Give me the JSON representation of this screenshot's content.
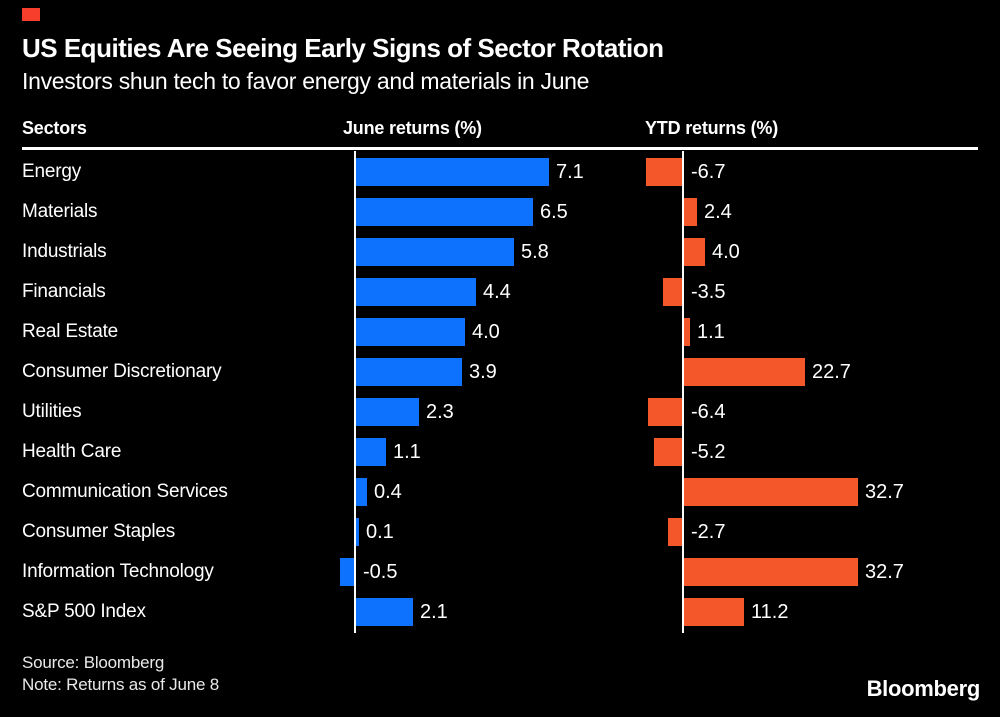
{
  "brand": {
    "red_square_color": "#f73e2c",
    "logo": "Bloomberg"
  },
  "header": {
    "title": "US Equities Are Seeing Early Signs of Sector Rotation",
    "subtitle": "Investors shun tech to favor energy and materials in June"
  },
  "table": {
    "sector_header": "Sectors"
  },
  "chart_data": {
    "type": "bar",
    "orientation": "horizontal",
    "title": "US Equities Are Seeing Early Signs of Sector Rotation",
    "subtitle": "Investors shun tech to favor energy and materials in June",
    "categories": [
      "Energy",
      "Materials",
      "Industrials",
      "Financials",
      "Real Estate",
      "Consumer Discretionary",
      "Utilities",
      "Health Care",
      "Communication Services",
      "Consumer Staples",
      "Information Technology",
      "S&P 500 Index"
    ],
    "series": [
      {
        "name": "June returns (%)",
        "color": "#0d73ff",
        "values": [
          7.1,
          6.5,
          5.8,
          4.4,
          4.0,
          3.9,
          2.3,
          1.1,
          0.4,
          0.1,
          -0.5,
          2.1
        ]
      },
      {
        "name": "YTD returns (%)",
        "color": "#f4582a",
        "values": [
          -6.7,
          2.4,
          4.0,
          -3.5,
          1.1,
          22.7,
          -6.4,
          -5.2,
          32.7,
          -2.7,
          32.7,
          11.2
        ]
      }
    ],
    "value_label_decimals": 1,
    "grid": "off",
    "legend": "column-headers",
    "background": "#000000",
    "text_color": "#ffffff"
  },
  "footer": {
    "source": "Source: Bloomberg",
    "note": "Note: Returns as of June 8",
    "logo": "Bloomberg"
  }
}
